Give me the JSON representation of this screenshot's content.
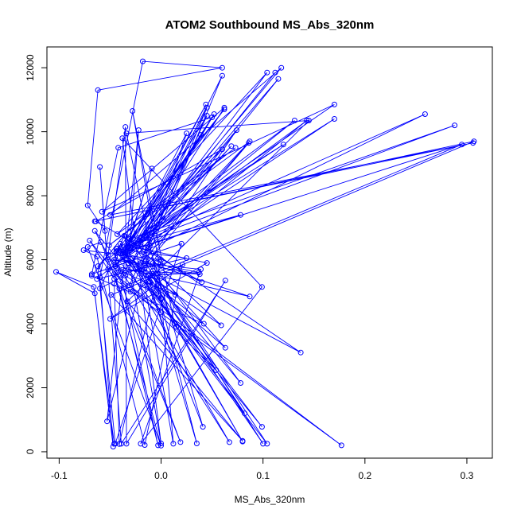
{
  "chart_data": {
    "type": "scatter",
    "title": "ATOM2 Southbound MS_Abs_320nm",
    "xlabel": "MS_Abs_320nm",
    "ylabel": "Altitude (m)",
    "xlim": [
      -0.112,
      0.325
    ],
    "ylim": [
      -200,
      12650
    ],
    "x_ticks": [
      -0.1,
      0.0,
      0.1,
      0.2,
      0.3
    ],
    "x_tick_labels": [
      "-0.1",
      "0.0",
      "0.1",
      "0.2",
      "0.3"
    ],
    "y_ticks": [
      0,
      2000,
      4000,
      6000,
      8000,
      10000,
      12000
    ],
    "y_tick_labels": [
      "0",
      "2000",
      "4000",
      "6000",
      "8000",
      "10000",
      "12000"
    ],
    "grid": false,
    "legend": "none",
    "series_color": "#0000ff",
    "series": [
      {
        "x": [
          -0.046,
          -0.066,
          -0.103,
          -0.065,
          -0.047,
          -0.06,
          -0.018,
          0.06,
          -0.062,
          -0.072,
          -0.055,
          -0.06,
          -0.039,
          0.063,
          -0.034,
          -0.035,
          -0.052,
          -0.062,
          -0.045,
          0.02,
          -0.068,
          -0.042,
          0.05,
          -0.03,
          0.115,
          -0.046,
          -0.041,
          0.0,
          -0.076,
          -0.063,
          -0.016,
          0.021,
          -0.05,
          0.045,
          -0.04,
          -0.025,
          -0.06,
          -0.036,
          0.0,
          -0.038,
          0.099,
          -0.02,
          0.039,
          -0.052,
          0.06,
          -0.064,
          0.04,
          -0.034,
          0.0,
          -0.065,
          -0.043,
          0.019,
          -0.059,
          -0.072,
          0.0,
          -0.046,
          0.177,
          -0.046,
          -0.07,
          -0.03,
          0.045,
          -0.035,
          0.0,
          -0.034,
          0.145,
          -0.033,
          0.08,
          -0.049,
          0.307,
          -0.065,
          0.306,
          -0.05,
          0.118,
          -0.045,
          0.087,
          -0.04,
          0.17,
          -0.052,
          0.038,
          -0.046,
          0.067,
          -0.043,
          0.014,
          -0.04,
          -0.045,
          -0.044,
          0.025,
          -0.063,
          0.131,
          -0.044,
          0.042,
          -0.068,
          0.062,
          -0.044,
          -0.003,
          -0.041,
          0.295,
          -0.038,
          0.045,
          -0.031,
          0.054,
          -0.016,
          0.012,
          -0.003,
          -0.028,
          0.013,
          0.104,
          -0.015,
          0.063,
          -0.011,
          0.08,
          -0.013,
          0.035,
          -0.008,
          0.1,
          -0.012,
          0.037,
          -0.008,
          0.078,
          -0.02,
          0.086,
          -0.019,
          0.041,
          -0.014,
          0.069,
          -0.045,
          0.039,
          -0.04,
          0.078,
          -0.032,
          0.052,
          -0.021,
          0.259,
          -0.017,
          0.143,
          -0.032,
          0.044,
          -0.031,
          0.025,
          -0.013,
          0.087,
          -0.051,
          0.073,
          -0.043,
          0.104,
          -0.012,
          0.12,
          -0.033,
          -0.009,
          -0.031,
          0.288,
          -0.04,
          0.082,
          -0.032,
          0.059,
          -0.035,
          0.137,
          -0.02,
          0.074,
          -0.016,
          -0.053,
          -0.035,
          -0.022,
          -0.032,
          0.099,
          -0.028,
          0.015,
          -0.015,
          0.06,
          -0.023,
          0.062,
          -0.058,
          0.17,
          -0.017,
          0.112
        ],
        "y": [
          250,
          5150,
          5620,
          4950,
          160,
          5450,
          12200,
          12000,
          11300,
          7700,
          6900,
          8900,
          250,
          5350,
          250,
          10150,
          6150,
          5800,
          250,
          6500,
          5550,
          9500,
          10450,
          6300,
          11650,
          5250,
          240,
          6000,
          6300,
          6100,
          210,
          5850,
          4150,
          5900,
          6500,
          5700,
          5100,
          6750,
          260,
          9800,
          5150,
          250,
          5700,
          6000,
          9450,
          7200,
          5300,
          6400,
          4350,
          6900,
          5600,
          300,
          6550,
          6400,
          190,
          5550,
          200,
          5400,
          6600,
          5000,
          10750,
          5500,
          4800,
          9950,
          10350,
          4700,
          340,
          4900,
          9700,
          7200,
          9650,
          7400,
          12000,
          5800,
          4850,
          6200,
          10400,
          5700,
          5550,
          6000,
          300,
          6350,
          4900,
          5650,
          5850,
          6350,
          6050,
          5400,
          10350,
          6200,
          4000,
          5500,
          10700,
          6250,
          200,
          5100,
          9600,
          6200,
          10500,
          5200,
          2550,
          5200,
          250,
          6050,
          10650,
          4000,
          250,
          6000,
          3250,
          5300,
          320,
          5500,
          260,
          5650,
          250,
          5500,
          5600,
          5900,
          2150,
          5900,
          9650,
          5700,
          780,
          6700,
          9550,
          5800,
          9900,
          6200,
          7400,
          6450,
          10550,
          6600,
          10550,
          6250,
          10350,
          6250,
          10850,
          6500,
          9950,
          6350,
          9700,
          6450,
          9500,
          6800,
          11850,
          6950,
          9600,
          6400,
          8850,
          6650,
          10200,
          6350,
          1200,
          6700,
          3950,
          6000,
          3100,
          6500,
          10050,
          5750,
          950,
          6250,
          10050,
          5900,
          780,
          6050,
          3900,
          5950,
          11750,
          6500,
          10750,
          7500,
          10850,
          6750,
          11850
        ]
      }
    ]
  }
}
